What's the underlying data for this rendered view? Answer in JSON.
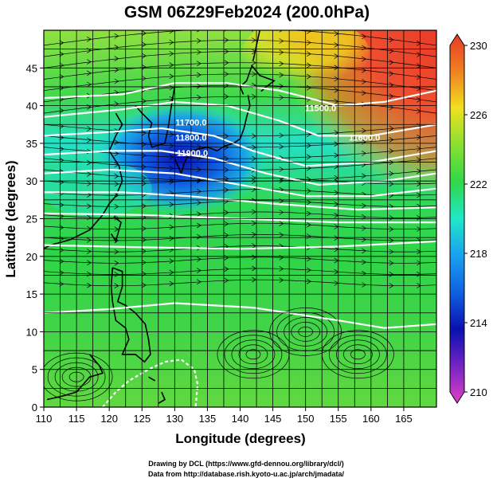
{
  "chart_data": {
    "type": "heatmap",
    "title": "GSM 06Z29Feb2024 (200.0hPa)",
    "xlabel": "Longitude (degrees)",
    "ylabel": "Latitude  (degrees)",
    "xlim": [
      110,
      170
    ],
    "ylim": [
      0,
      50
    ],
    "xticks": [
      "110",
      "115",
      "120",
      "125",
      "130",
      "135",
      "140",
      "145",
      "150",
      "155",
      "160",
      "165"
    ],
    "yticks": [
      "0",
      "5",
      "10",
      "15",
      "20",
      "25",
      "30",
      "35",
      "40",
      "45"
    ],
    "grid": true,
    "colorbar": {
      "range": [
        210,
        230
      ],
      "ticks": [
        "210",
        "214",
        "218",
        "222",
        "226",
        "230"
      ],
      "colors": [
        "#e040c8",
        "#0a10b0",
        "#1aa0f0",
        "#20e8c8",
        "#30d848",
        "#88e030",
        "#f0e020",
        "#f08020",
        "#e83a28"
      ]
    },
    "contour_labels": [
      {
        "text": "11700.0",
        "lon": 132.5,
        "lat": 37.8
      },
      {
        "text": "11800.0",
        "lon": 132.5,
        "lat": 35.8
      },
      {
        "text": "11900.0",
        "lon": 132.7,
        "lat": 33.7
      },
      {
        "text": "11500.0",
        "lon": 152.3,
        "lat": 39.7
      },
      {
        "text": "11600.0",
        "lon": 159.0,
        "lat": 35.8
      }
    ]
  },
  "credits": {
    "line1": "Drawing by DCL (https://www.gfd-dennou.org/library/dcl/)",
    "line2": "Data from http://database.rish.kyoto-u.ac.jp/arch/jmadata/"
  }
}
